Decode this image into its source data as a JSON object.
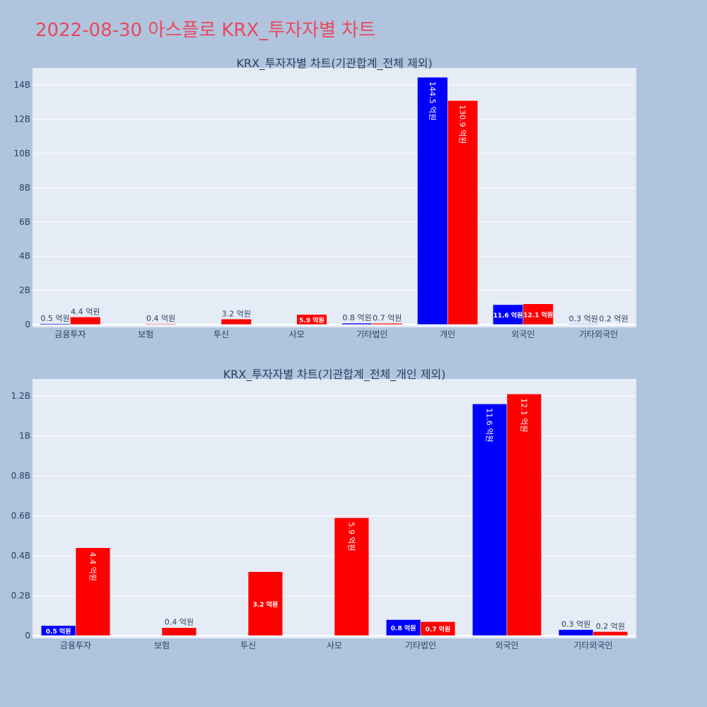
{
  "page": {
    "title": "2022-08-30 아스플로 KRX_투자자별 차트",
    "title_color": "#e8495e",
    "background": "#b0c4de",
    "plot_background": "#e5ecf6"
  },
  "chart_data": [
    {
      "type": "bar",
      "title": "KRX_투자자별 차트(기관합계_전체 제외)",
      "xlabel": "",
      "ylabel": "",
      "categories": [
        "금융투자",
        "보험",
        "투신",
        "사모",
        "기타법인",
        "개인",
        "외국인",
        "기타외국인"
      ],
      "ylim": [
        0,
        15000000000
      ],
      "yticks": [
        0,
        2000000000,
        4000000000,
        6000000000,
        8000000000,
        10000000000,
        12000000000,
        14000000000
      ],
      "ytick_labels": [
        "0",
        "2B",
        "4B",
        "6B",
        "8B",
        "10B",
        "12B",
        "14B"
      ],
      "grid": true,
      "series": [
        {
          "color": "#0000ff",
          "values": [
            50000000,
            null,
            null,
            null,
            80000000,
            14450000000,
            1160000000,
            30000000
          ],
          "labels": [
            "0.5 억원",
            "",
            "",
            "",
            "0.8 억원",
            "144.5 억원",
            "11.6 억원",
            "0.3 억원"
          ]
        },
        {
          "color": "#ff0000",
          "values": [
            440000000,
            40000000,
            320000000,
            590000000,
            70000000,
            13090000000,
            1210000000,
            20000000
          ],
          "labels": [
            "4.4 억원",
            "0.4 억원",
            "3.2 억원",
            "5.9 억원",
            "0.7 억원",
            "130.9 억원",
            "12.1 억원",
            "0.2 억원"
          ]
        }
      ]
    },
    {
      "type": "bar",
      "title": "KRX_투자자별 차트(기관합계_전체_개인 제외)",
      "xlabel": "",
      "ylabel": "",
      "categories": [
        "금융투자",
        "보험",
        "투신",
        "사모",
        "기타법인",
        "외국인",
        "기타외국인"
      ],
      "ylim": [
        0,
        1285000000
      ],
      "yticks": [
        0,
        200000000,
        400000000,
        600000000,
        800000000,
        1000000000,
        1200000000
      ],
      "ytick_labels": [
        "0",
        "0.2B",
        "0.4B",
        "0.6B",
        "0.8B",
        "1B",
        "1.2B"
      ],
      "grid": true,
      "series": [
        {
          "color": "#0000ff",
          "values": [
            50000000,
            null,
            null,
            null,
            80000000,
            1160000000,
            30000000
          ],
          "labels": [
            "0.5 억원",
            "",
            "",
            "",
            "0.8 억원",
            "11.6 억원",
            "0.3 억원"
          ]
        },
        {
          "color": "#ff0000",
          "values": [
            440000000,
            40000000,
            320000000,
            590000000,
            70000000,
            1210000000,
            20000000
          ],
          "labels": [
            "4.4 억원",
            "0.4 억원",
            "3.2 억원",
            "5.9 억원",
            "0.7 억원",
            "12.1 억원",
            "0.2 억원"
          ]
        }
      ]
    }
  ]
}
